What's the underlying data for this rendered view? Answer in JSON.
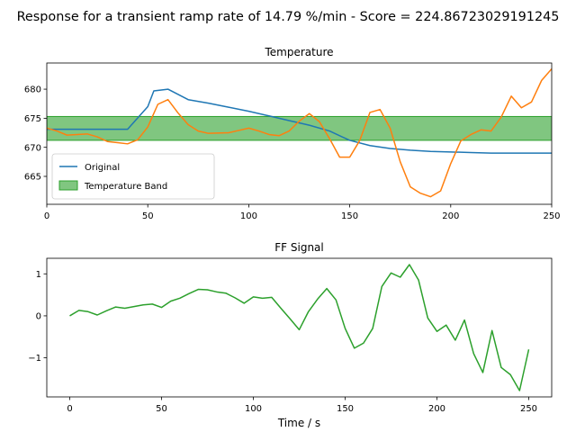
{
  "figure": {
    "suptitle": "Response for a transient ramp rate of 14.79 %/min - Score = 224.86723029191245"
  },
  "chart_data": [
    {
      "type": "line",
      "title": "Temperature",
      "xlabel": "",
      "ylabel": "",
      "xlim": [
        0,
        250
      ],
      "ylim": [
        660.2,
        684.5
      ],
      "xticks": [
        0,
        50,
        100,
        150,
        200,
        250
      ],
      "yticks": [
        665,
        670,
        675,
        680
      ],
      "grid": false,
      "legend_position": "lower-left",
      "band": {
        "name": "Temperature Band",
        "ymin": 671.2,
        "ymax": 675.3,
        "color": "#2ca02c"
      },
      "series": [
        {
          "name": "Original",
          "color": "#1f77b4",
          "x": [
            0,
            5,
            10,
            20,
            30,
            40,
            50,
            53,
            60,
            70,
            80,
            90,
            100,
            110,
            120,
            130,
            140,
            150,
            160,
            170,
            180,
            190,
            200,
            210,
            220,
            230,
            240,
            250
          ],
          "y": [
            673.1,
            673.1,
            673.1,
            673.1,
            673.1,
            673.1,
            677.0,
            679.7,
            680.0,
            678.2,
            677.6,
            676.9,
            676.2,
            675.4,
            674.6,
            673.8,
            672.8,
            671.2,
            670.3,
            669.8,
            669.5,
            669.3,
            669.2,
            669.1,
            669.0,
            669.0,
            669.0,
            669.0
          ]
        },
        {
          "name": "",
          "color": "#ff7f0e",
          "x": [
            0,
            5,
            10,
            20,
            25,
            30,
            35,
            40,
            45,
            50,
            55,
            60,
            65,
            70,
            75,
            80,
            90,
            95,
            100,
            105,
            110,
            115,
            120,
            125,
            130,
            135,
            140,
            145,
            150,
            155,
            160,
            165,
            170,
            175,
            180,
            185,
            190,
            195,
            200,
            205,
            210,
            215,
            220,
            225,
            230,
            235,
            240,
            245,
            250
          ],
          "y": [
            673.3,
            672.8,
            672.1,
            672.3,
            671.8,
            671.0,
            670.8,
            670.6,
            671.3,
            673.5,
            677.4,
            678.2,
            675.9,
            673.9,
            672.8,
            672.4,
            672.5,
            672.9,
            673.3,
            672.8,
            672.2,
            672.0,
            672.8,
            674.5,
            675.8,
            674.4,
            671.5,
            668.3,
            668.3,
            671.2,
            676.0,
            676.5,
            673.3,
            667.5,
            663.2,
            662.1,
            661.5,
            662.5,
            667.2,
            671.1,
            672.2,
            673.0,
            672.8,
            675.2,
            678.8,
            676.8,
            677.8,
            681.5,
            683.5
          ]
        }
      ]
    },
    {
      "type": "line",
      "title": "FF Signal",
      "xlabel": "Time / s",
      "ylabel": "",
      "xlim": [
        -12.5,
        262.5
      ],
      "ylim": [
        -1.93,
        1.37
      ],
      "xticks": [
        0,
        50,
        100,
        150,
        200,
        250
      ],
      "yticks": [
        -1,
        0,
        1
      ],
      "grid": false,
      "series": [
        {
          "name": "",
          "color": "#2ca02c",
          "x": [
            0,
            5,
            10,
            15,
            20,
            25,
            30,
            35,
            40,
            45,
            50,
            55,
            60,
            65,
            70,
            75,
            80,
            85,
            90,
            95,
            100,
            105,
            110,
            115,
            120,
            125,
            130,
            135,
            140,
            145,
            150,
            155,
            160,
            165,
            170,
            175,
            180,
            185,
            190,
            195,
            200,
            205,
            210,
            215,
            220,
            225,
            230,
            235,
            240,
            245,
            250
          ],
          "y": [
            0.0,
            0.13,
            0.1,
            0.02,
            0.12,
            0.21,
            0.18,
            0.22,
            0.26,
            0.28,
            0.2,
            0.35,
            0.42,
            0.53,
            0.63,
            0.62,
            0.57,
            0.54,
            0.43,
            0.3,
            0.45,
            0.42,
            0.44,
            0.18,
            -0.07,
            -0.33,
            0.1,
            0.4,
            0.65,
            0.38,
            -0.3,
            -0.77,
            -0.65,
            -0.3,
            0.7,
            1.02,
            0.92,
            1.22,
            0.85,
            -0.05,
            -0.37,
            -0.22,
            -0.58,
            -0.1,
            -0.9,
            -1.35,
            -0.35,
            -1.23,
            -1.4,
            -1.78,
            -0.8
          ]
        }
      ]
    }
  ]
}
